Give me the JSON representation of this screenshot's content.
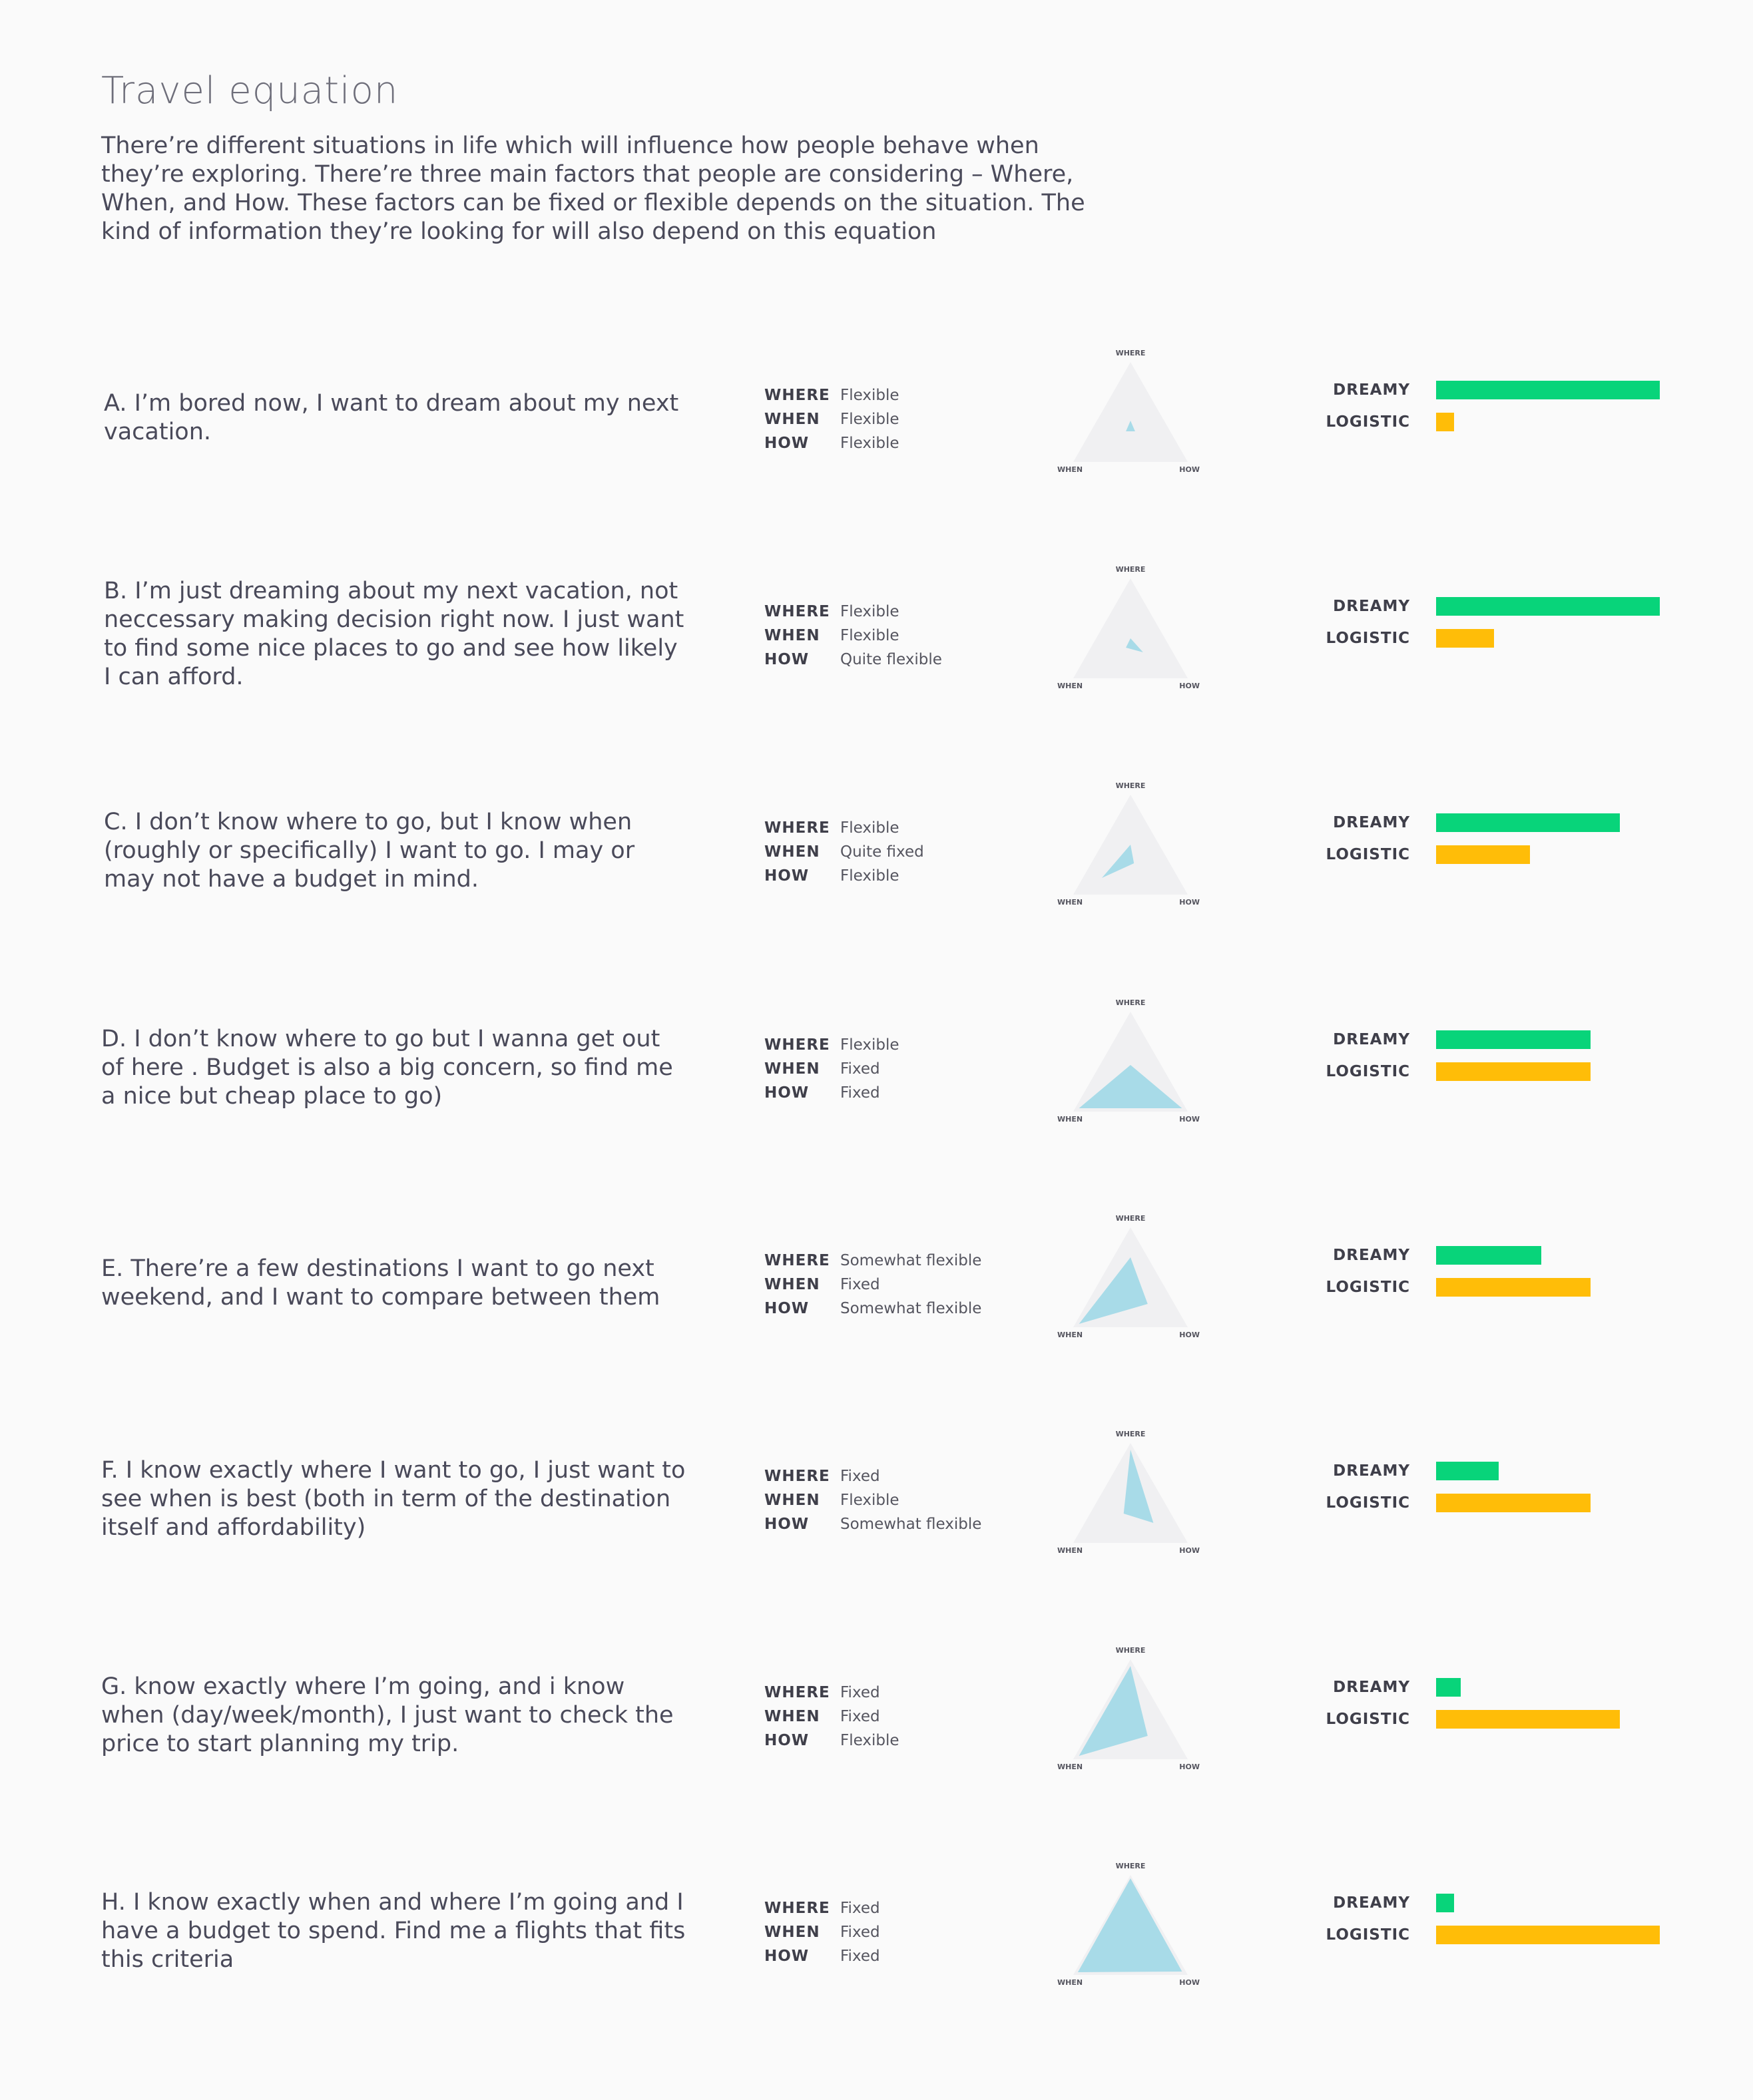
{
  "title": "Travel equation",
  "intro": "There’re different situations in life which will influence how people behave when they’re exploring. There’re three main factors that people are considering – Where, When, and How. These factors can be fixed or flexible depends on the situation. The kind of information they’re looking for will also depend on this equation",
  "factor_labels": {
    "where": "WHERE",
    "when": "WHEN",
    "how": "HOW"
  },
  "axis_labels": {
    "where": "WHERE",
    "when": "WHEN",
    "how": "HOW"
  },
  "bar_labels": {
    "dreamy": "DREAMY",
    "logistic": "LOGISTIC"
  },
  "colors": {
    "dreamy": "#08d47a",
    "logistic": "#ffbd08",
    "radar_fill": "#a8dbe8",
    "triangle_bg": "#f0f0f2",
    "text": "#4a4a5a"
  },
  "scenarios": [
    {
      "text": "A. I’m bored now, I want to dream about my next vacation.",
      "where": "Flexible",
      "when": "Flexible",
      "how": "Flexible",
      "radar": {
        "where": 0.12,
        "when": 0.08,
        "how": 0.08
      },
      "dreamy": 1.0,
      "logistic": 0.08
    },
    {
      "text": "B. I’m just dreaming about my next vacation, not neccessary making decision right now. I just want to find some nice places to go and see how likely I can afford.",
      "where": "Flexible",
      "when": "Flexible",
      "how": "Quite flexible",
      "radar": {
        "where": 0.1,
        "when": 0.08,
        "how": 0.22
      },
      "dreamy": 1.0,
      "logistic": 0.26
    },
    {
      "text": "C. I don’t know where to go, but I know when (roughly or specifically) I want to go. I may or may not have a budget in mind.",
      "where": "Flexible",
      "when": "Quite fixed",
      "how": "Flexible",
      "radar": {
        "where": 0.25,
        "when": 0.5,
        "how": 0.06
      },
      "dreamy": 0.82,
      "logistic": 0.42
    },
    {
      "text": "D. I don’t know where to go but I wanna get out of here . Budget is also a big concern, so find me a nice but cheap place to go)",
      "where": "Flexible",
      "when": "Fixed",
      "how": "Fixed",
      "radar": {
        "where": 0.2,
        "when": 0.9,
        "how": 0.9
      },
      "dreamy": 0.69,
      "logistic": 0.69
    },
    {
      "text": "E. There’re a few destinations I want to go next weekend, and I want to compare between them",
      "where": "Somewhat flexible",
      "when": "Fixed",
      "how": "Somewhat flexible",
      "radar": {
        "where": 0.55,
        "when": 0.9,
        "how": 0.3
      },
      "dreamy": 0.47,
      "logistic": 0.69
    },
    {
      "text": "F. I know exactly where I want to go, I just want to see when is best (both in term of the destination itself and affordability)",
      "where": "Fixed",
      "when": "Flexible",
      "how": "Somewhat flexible",
      "radar": {
        "where": 0.9,
        "when": 0.12,
        "how": 0.4
      },
      "dreamy": 0.28,
      "logistic": 0.69
    },
    {
      "text": "G. know exactly where I’m going, and i know when (day/week/month), I just want to check the price to start planning my trip.",
      "where": "Fixed",
      "when": "Fixed",
      "how": "Flexible",
      "radar": {
        "where": 0.9,
        "when": 0.9,
        "how": 0.3
      },
      "dreamy": 0.11,
      "logistic": 0.82
    },
    {
      "text": "H. I know exactly when and where I’m going and I have a budget to spend. Find me a flights that fits this criteria",
      "where": "Fixed",
      "when": "Fixed",
      "how": "Fixed",
      "radar": {
        "where": 0.95,
        "when": 0.92,
        "how": 0.9
      },
      "dreamy": 0.08,
      "logistic": 1.0
    }
  ]
}
